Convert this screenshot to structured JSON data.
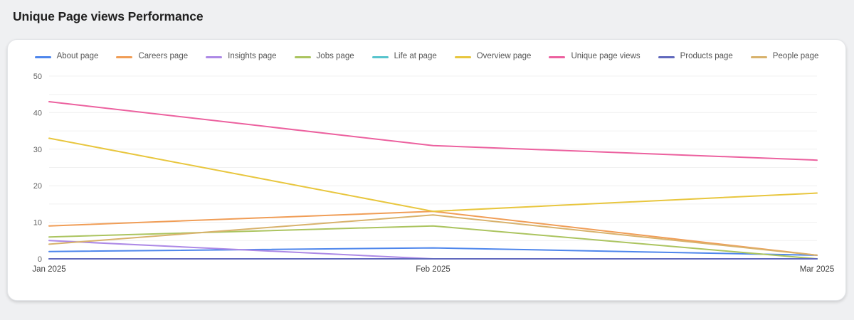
{
  "page": {
    "title": "Unique Page views Performance"
  },
  "chart_data": {
    "type": "line",
    "title": "Unique Page views Performance",
    "x": [
      "Jan 2025",
      "Feb 2025",
      "Mar 2025"
    ],
    "xlabel": "",
    "ylabel": "",
    "ylim": [
      0,
      50
    ],
    "y_tick_interval": 10,
    "grid_interval": 5,
    "grid": true,
    "legend_position": "top",
    "series": [
      {
        "name": "About page",
        "color": "#4e86ec",
        "values": [
          2,
          3,
          1
        ]
      },
      {
        "name": "Careers page",
        "color": "#f09d56",
        "values": [
          9,
          13,
          1
        ]
      },
      {
        "name": "Insights page",
        "color": "#ad89e6",
        "values": [
          5,
          0,
          0
        ]
      },
      {
        "name": "Jobs page",
        "color": "#abc45f",
        "values": [
          6,
          9,
          0
        ]
      },
      {
        "name": "Life at page",
        "color": "#57c4cd",
        "values": [
          0,
          0,
          0
        ]
      },
      {
        "name": "Overview page",
        "color": "#e8c63e",
        "values": [
          33,
          13,
          18
        ]
      },
      {
        "name": "Unique page views",
        "color": "#ec619f",
        "values": [
          43,
          31,
          27
        ]
      },
      {
        "name": "Products page",
        "color": "#6169bd",
        "values": [
          0,
          0,
          0
        ]
      },
      {
        "name": "People page",
        "color": "#d8b26c",
        "values": [
          4,
          12,
          1
        ]
      }
    ]
  }
}
